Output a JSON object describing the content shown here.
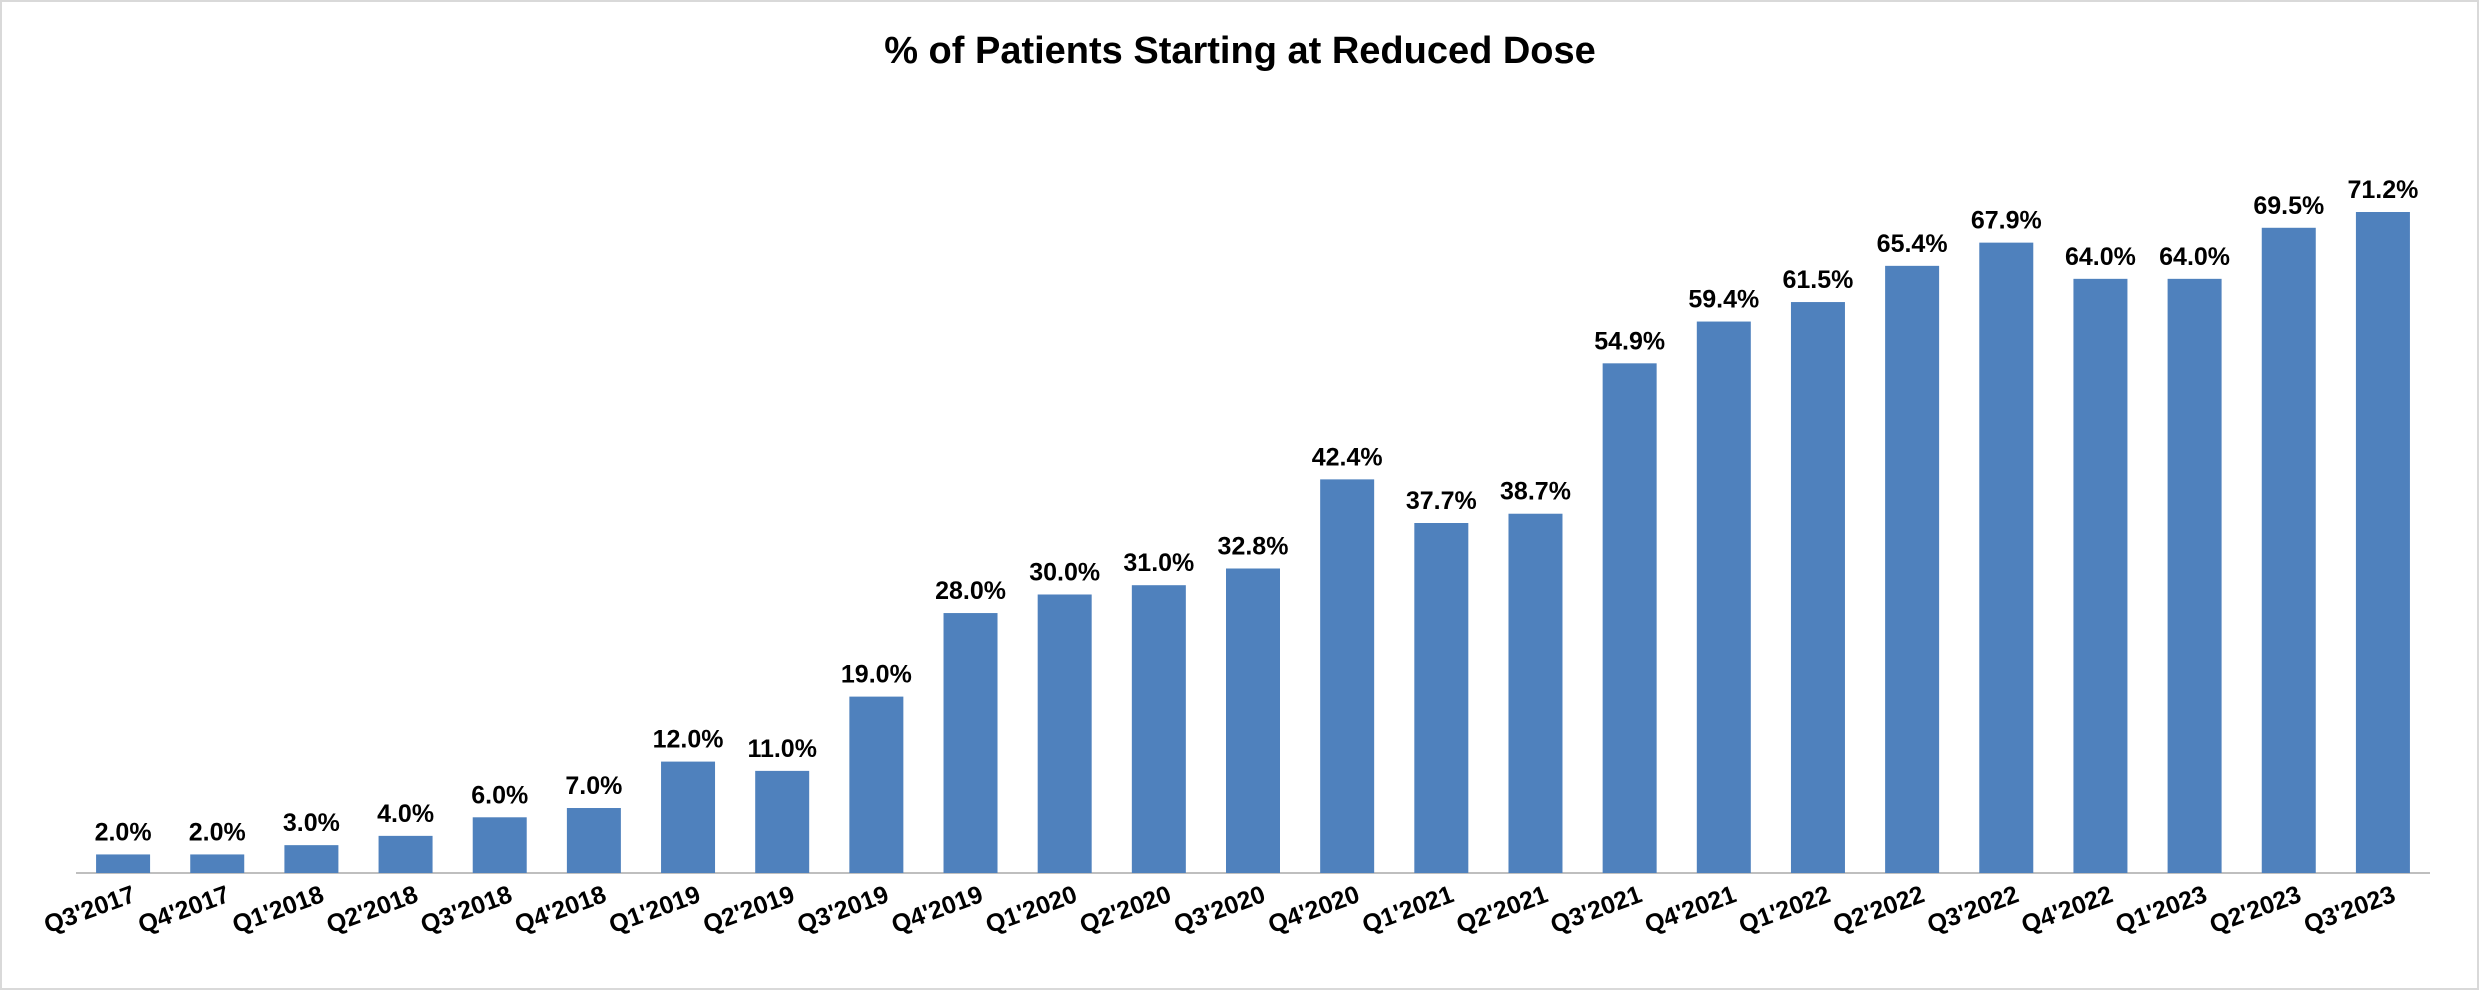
{
  "chart_data": {
    "type": "bar",
    "title": "% of Patients Starting at Reduced Dose",
    "categories": [
      "Q3'2017",
      "Q4'2017",
      "Q1'2018",
      "Q2'2018",
      "Q3'2018",
      "Q4'2018",
      "Q1'2019",
      "Q2'2019",
      "Q3'2019",
      "Q4'2019",
      "Q1'2020",
      "Q2'2020",
      "Q3'2020",
      "Q4'2020",
      "Q1'2021",
      "Q2'2021",
      "Q3'2021",
      "Q4'2021",
      "Q1'2022",
      "Q2'2022",
      "Q3'2022",
      "Q4'2022",
      "Q1'2023",
      "Q2'2023",
      "Q3'2023"
    ],
    "values": [
      2.0,
      2.0,
      3.0,
      4.0,
      6.0,
      7.0,
      12.0,
      11.0,
      19.0,
      28.0,
      30.0,
      31.0,
      32.8,
      42.4,
      37.7,
      38.7,
      54.9,
      59.4,
      61.5,
      65.4,
      67.9,
      64.0,
      64.0,
      69.5,
      71.2
    ],
    "value_labels": [
      "2.0%",
      "2.0%",
      "3.0%",
      "4.0%",
      "6.0%",
      "7.0%",
      "12.0%",
      "11.0%",
      "19.0%",
      "28.0%",
      "30.0%",
      "31.0%",
      "32.8%",
      "42.4%",
      "37.7%",
      "38.7%",
      "54.9%",
      "59.4%",
      "61.5%",
      "65.4%",
      "67.9%",
      "64.0%",
      "64.0%",
      "69.5%",
      "71.2%"
    ],
    "color": "#4f81bd"
  }
}
